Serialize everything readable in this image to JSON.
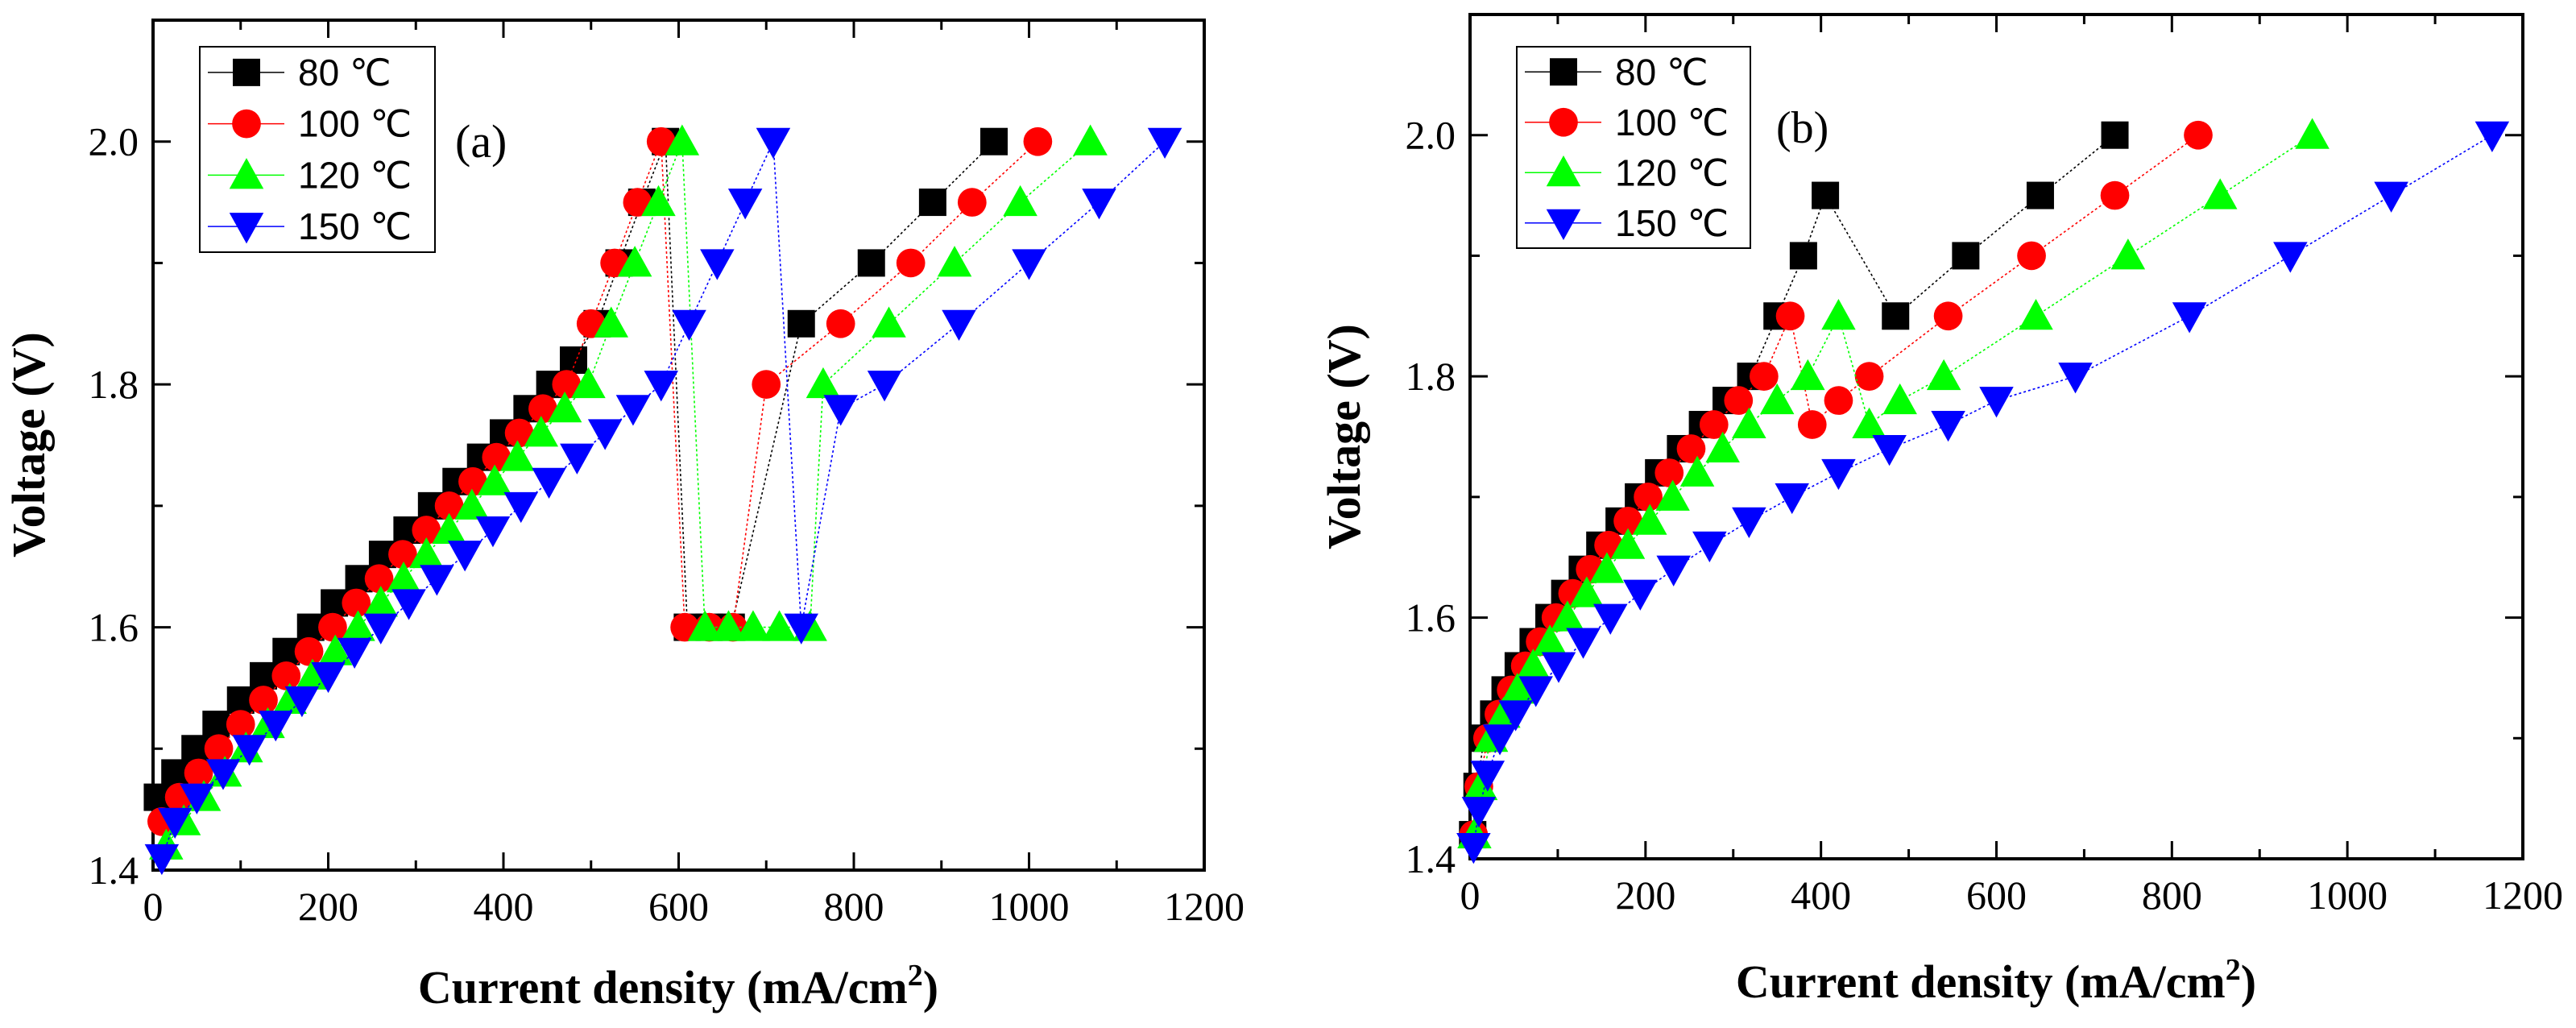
{
  "chart_data": [
    {
      "id": "a",
      "type": "scatter",
      "panel_label": "(a)",
      "xlabel": "Current density (mA/cm",
      "xlabel_sup": "2",
      "xlabel_tail": ")",
      "ylabel": "Voltage (V)",
      "xlim": [
        0,
        1200
      ],
      "ylim": [
        1.4,
        2.1
      ],
      "xticks": [
        0,
        200,
        400,
        600,
        800,
        1000,
        1200
      ],
      "yticks": [
        1.4,
        1.6,
        1.8,
        2.0
      ],
      "xtick_labels": [
        "0",
        "200",
        "400",
        "600",
        "800",
        "1000",
        "1200"
      ],
      "ytick_labels": [
        "1.4",
        "1.6",
        "1.8",
        "2.0"
      ],
      "legend_position": "top-left",
      "series": [
        {
          "name": "80 ℃",
          "color": "#000000",
          "marker": "square",
          "x": [
            5,
            25,
            48,
            72,
            100,
            126,
            152,
            180,
            207,
            235,
            262,
            290,
            318,
            346,
            374,
            400,
            427,
            453,
            480,
            507,
            532,
            558,
            585,
            610,
            635,
            660,
            740,
            820,
            890,
            960
          ],
          "y": [
            1.46,
            1.48,
            1.5,
            1.52,
            1.54,
            1.56,
            1.58,
            1.6,
            1.62,
            1.64,
            1.66,
            1.68,
            1.7,
            1.72,
            1.74,
            1.76,
            1.78,
            1.8,
            1.82,
            1.85,
            1.9,
            1.95,
            2.0,
            1.6,
            1.6,
            1.6,
            1.85,
            1.9,
            1.95,
            2.0
          ]
        },
        {
          "name": "100 ℃",
          "color": "#ff0000",
          "marker": "circle",
          "x": [
            10,
            30,
            52,
            75,
            100,
            126,
            152,
            178,
            205,
            232,
            258,
            285,
            312,
            338,
            365,
            392,
            418,
            445,
            472,
            500,
            527,
            553,
            580,
            607,
            635,
            662,
            700,
            785,
            865,
            935,
            1010
          ],
          "y": [
            1.44,
            1.46,
            1.48,
            1.5,
            1.52,
            1.54,
            1.56,
            1.58,
            1.6,
            1.62,
            1.64,
            1.66,
            1.68,
            1.7,
            1.72,
            1.74,
            1.76,
            1.78,
            1.8,
            1.85,
            1.9,
            1.95,
            2.0,
            1.6,
            1.6,
            1.6,
            1.8,
            1.85,
            1.9,
            1.95,
            2.0
          ]
        },
        {
          "name": "120 ℃",
          "color": "#00ff00",
          "marker": "triangle-up",
          "x": [
            15,
            35,
            58,
            82,
            106,
            131,
            156,
            182,
            208,
            234,
            260,
            286,
            312,
            338,
            364,
            390,
            416,
            443,
            470,
            497,
            523,
            550,
            577,
            604,
            630,
            657,
            685,
            715,
            750,
            765,
            840,
            915,
            990,
            1070
          ],
          "y": [
            1.42,
            1.44,
            1.46,
            1.48,
            1.5,
            1.52,
            1.54,
            1.56,
            1.58,
            1.6,
            1.62,
            1.64,
            1.66,
            1.68,
            1.7,
            1.72,
            1.74,
            1.76,
            1.78,
            1.8,
            1.85,
            1.9,
            1.95,
            2.0,
            1.6,
            1.6,
            1.6,
            1.6,
            1.6,
            1.8,
            1.85,
            1.9,
            1.95,
            2.0
          ]
        },
        {
          "name": "150 ℃",
          "color": "#0000ff",
          "marker": "triangle-down",
          "x": [
            10,
            25,
            50,
            80,
            110,
            140,
            170,
            200,
            230,
            260,
            292,
            324,
            356,
            388,
            420,
            452,
            484,
            516,
            548,
            580,
            612,
            644,
            676,
            708,
            740,
            785,
            835,
            920,
            1000,
            1080,
            1155
          ],
          "y": [
            1.41,
            1.44,
            1.46,
            1.48,
            1.5,
            1.52,
            1.54,
            1.56,
            1.58,
            1.6,
            1.62,
            1.64,
            1.66,
            1.68,
            1.7,
            1.72,
            1.74,
            1.76,
            1.78,
            1.8,
            1.85,
            1.9,
            1.95,
            2.0,
            1.6,
            1.78,
            1.8,
            1.85,
            1.9,
            1.95,
            2.0
          ]
        }
      ]
    },
    {
      "id": "b",
      "type": "scatter",
      "panel_label": "(b)",
      "xlabel": "Current density (mA/cm",
      "xlabel_sup": "2",
      "xlabel_tail": ")",
      "ylabel": "Voltage (V)",
      "xlim": [
        0,
        1200
      ],
      "ylim": [
        1.4,
        2.1
      ],
      "xticks": [
        0,
        200,
        400,
        600,
        800,
        1000,
        1200
      ],
      "yticks": [
        1.4,
        1.6,
        1.8,
        2.0
      ],
      "xtick_labels": [
        "0",
        "200",
        "400",
        "600",
        "800",
        "1000",
        "1200"
      ],
      "ytick_labels": [
        "1.4",
        "1.6",
        "1.8",
        "2.0"
      ],
      "legend_position": "top-left",
      "series": [
        {
          "name": "80 ℃",
          "color": "#000000",
          "marker": "square",
          "x": [
            3,
            8,
            16,
            27,
            40,
            55,
            72,
            90,
            108,
            128,
            148,
            170,
            192,
            215,
            240,
            265,
            292,
            320,
            350,
            380,
            405,
            485,
            565,
            650,
            735
          ],
          "y": [
            1.42,
            1.46,
            1.5,
            1.52,
            1.54,
            1.56,
            1.58,
            1.6,
            1.62,
            1.64,
            1.66,
            1.68,
            1.7,
            1.72,
            1.74,
            1.76,
            1.78,
            1.8,
            1.85,
            1.9,
            1.95,
            1.85,
            1.9,
            1.95,
            2.0
          ]
        },
        {
          "name": "100 ℃",
          "color": "#ff0000",
          "marker": "circle",
          "x": [
            4,
            10,
            20,
            33,
            47,
            63,
            80,
            98,
            117,
            137,
            158,
            180,
            203,
            227,
            252,
            278,
            306,
            335,
            365,
            390,
            420,
            455,
            545,
            640,
            735,
            830
          ],
          "y": [
            1.42,
            1.46,
            1.5,
            1.52,
            1.54,
            1.56,
            1.58,
            1.6,
            1.62,
            1.64,
            1.66,
            1.68,
            1.7,
            1.72,
            1.74,
            1.76,
            1.78,
            1.8,
            1.85,
            1.76,
            1.78,
            1.8,
            1.85,
            1.9,
            1.95,
            2.0
          ]
        },
        {
          "name": "120 ℃",
          "color": "#00ff00",
          "marker": "triangle-up",
          "x": [
            5,
            12,
            24,
            38,
            54,
            72,
            91,
            111,
            133,
            156,
            180,
            205,
            231,
            259,
            288,
            318,
            350,
            385,
            420,
            455,
            490,
            540,
            645,
            750,
            855,
            960
          ],
          "y": [
            1.42,
            1.46,
            1.5,
            1.52,
            1.54,
            1.56,
            1.58,
            1.6,
            1.62,
            1.64,
            1.66,
            1.68,
            1.7,
            1.72,
            1.74,
            1.76,
            1.78,
            1.8,
            1.85,
            1.76,
            1.78,
            1.8,
            1.85,
            1.9,
            1.95,
            2.0
          ]
        },
        {
          "name": "150 ℃",
          "color": "#0000ff",
          "marker": "triangle-down",
          "x": [
            4,
            10,
            20,
            34,
            52,
            75,
            101,
            129,
            160,
            194,
            232,
            273,
            318,
            367,
            420,
            478,
            545,
            600,
            690,
            820,
            935,
            1050,
            1165
          ],
          "y": [
            1.41,
            1.44,
            1.47,
            1.5,
            1.52,
            1.54,
            1.56,
            1.58,
            1.6,
            1.62,
            1.64,
            1.66,
            1.68,
            1.7,
            1.72,
            1.74,
            1.76,
            1.78,
            1.8,
            1.85,
            1.9,
            1.95,
            2.0
          ]
        }
      ]
    }
  ]
}
